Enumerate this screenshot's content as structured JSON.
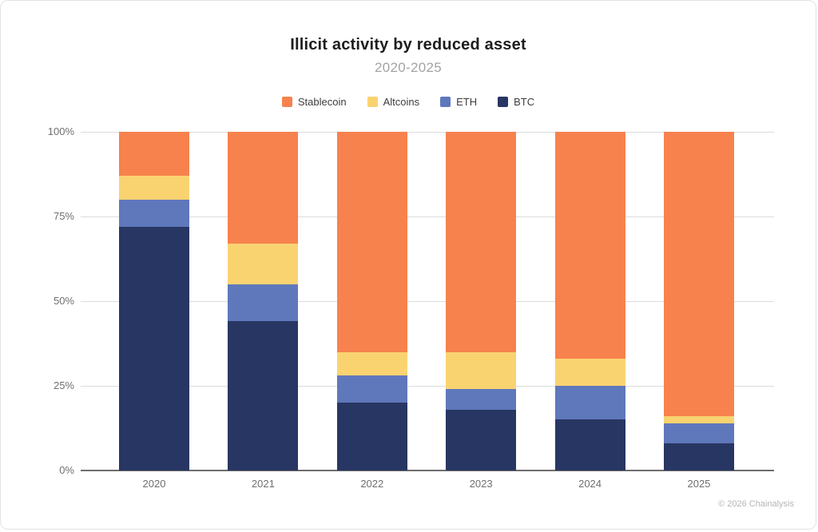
{
  "header": {
    "title": "Illicit activity by reduced asset",
    "subtitle": "2020-2025"
  },
  "footer": {
    "credit": "© 2026 Chainalysis"
  },
  "chart_data": {
    "type": "bar",
    "stacked": true,
    "percent_stacked": true,
    "title": "Illicit activity by reduced asset",
    "subtitle": "2020-2025",
    "categories": [
      "2020",
      "2021",
      "2022",
      "2023",
      "2024",
      "2025"
    ],
    "series": [
      {
        "name": "Stablecoin",
        "color": "#F7824D",
        "values": [
          13,
          33,
          65,
          65,
          67,
          84
        ]
      },
      {
        "name": "Altcoins",
        "color": "#FAD371",
        "values": [
          7,
          12,
          7,
          11,
          8,
          2
        ]
      },
      {
        "name": "ETH",
        "color": "#5F78BB",
        "values": [
          8,
          11,
          8,
          6,
          10,
          6
        ]
      },
      {
        "name": "BTC",
        "color": "#283663",
        "values": [
          72,
          44,
          20,
          18,
          15,
          8
        ]
      }
    ],
    "xlabel": "",
    "ylabel": "",
    "ylim": [
      0,
      100
    ],
    "yticks": [
      {
        "value": 100,
        "label": "100%"
      },
      {
        "value": 75,
        "label": "75%"
      },
      {
        "value": 50,
        "label": "50%"
      },
      {
        "value": 25,
        "label": "25%"
      },
      {
        "value": 0,
        "label": "0%"
      }
    ],
    "grid": "horizontal",
    "legend_position": "top"
  }
}
